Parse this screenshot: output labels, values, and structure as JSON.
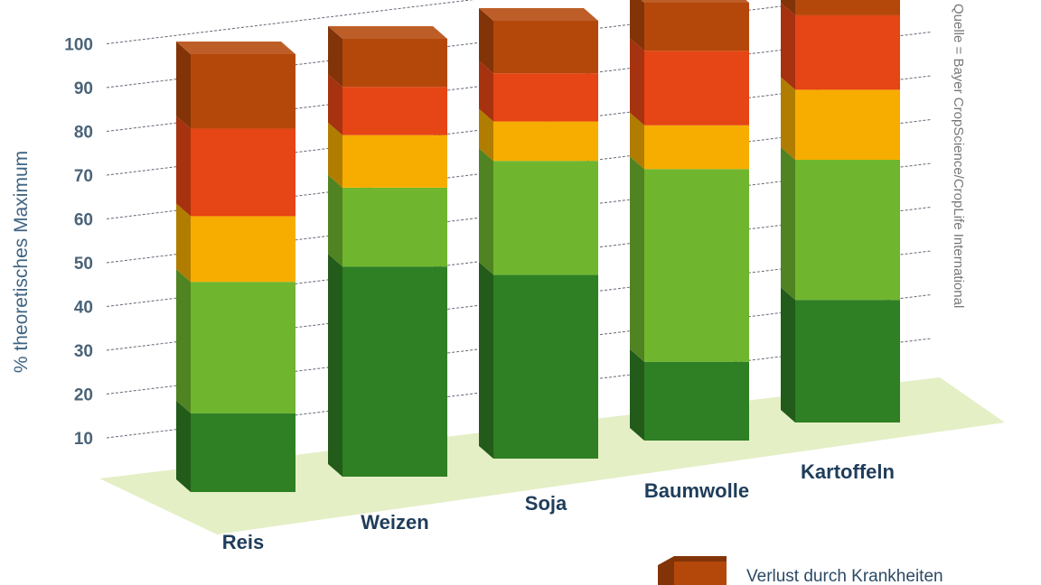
{
  "chart_data": {
    "type": "bar",
    "stacked": true,
    "style": "3d",
    "ylabel": "% theoretisches Maximum",
    "ylim": [
      0,
      100
    ],
    "yticks": [
      10,
      20,
      30,
      40,
      50,
      60,
      70,
      80,
      90,
      100
    ],
    "grid": true,
    "categories": [
      "Reis",
      "Weizen",
      "Soja",
      "Baumwolle",
      "Kartoffeln"
    ],
    "series": [
      {
        "color": "#2f7f24",
        "values": [
          18,
          48,
          42,
          18,
          28
        ]
      },
      {
        "color": "#6fb62e",
        "values": [
          30,
          18,
          26,
          44,
          32
        ]
      },
      {
        "color": "#f6ad00",
        "values": [
          15,
          12,
          9,
          10,
          16
        ]
      },
      {
        "color": "#e64515",
        "values": [
          20,
          11,
          11,
          17,
          17
        ]
      },
      {
        "name": "Verlust durch Krankheiten",
        "color": "#b4480b",
        "values": [
          17,
          11,
          12,
          11,
          7
        ]
      }
    ],
    "source": "Quelle = Bayer CropScience/CropLife International",
    "legend": {
      "placement": "bottom-right",
      "entries": [
        "Verlust durch Krankheiten"
      ]
    }
  }
}
